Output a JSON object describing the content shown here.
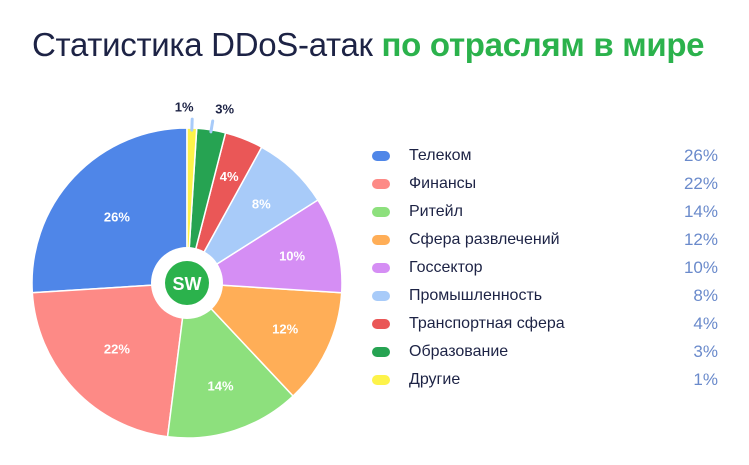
{
  "title": {
    "main": "Статистика DDoS-атак",
    "accent": "по отраслям в мире"
  },
  "logo": "SW",
  "colors": {
    "title_text": "#1d2345",
    "title_accent": "#2bb24c",
    "legend_value": "#6a8acb"
  },
  "chart_data": {
    "type": "pie",
    "unit": "%",
    "slices": [
      {
        "name": "Телеком",
        "value": 26,
        "label": "26%",
        "color": "#4f86e8"
      },
      {
        "name": "Финансы",
        "value": 22,
        "label": "22%",
        "color": "#fd8a86"
      },
      {
        "name": "Ритейл",
        "value": 14,
        "label": "14%",
        "color": "#8de07d"
      },
      {
        "name": "Сфера развлечений",
        "value": 12,
        "label": "12%",
        "color": "#ffae57"
      },
      {
        "name": "Госсектор",
        "value": 10,
        "label": "10%",
        "color": "#d58ef4"
      },
      {
        "name": "Промышленность",
        "value": 8,
        "label": "8%",
        "color": "#a8cbf9"
      },
      {
        "name": "Транспортная сфера",
        "value": 4,
        "label": "4%",
        "color": "#ea5757"
      },
      {
        "name": "Образование",
        "value": 3,
        "label": "3%",
        "color": "#26a352"
      },
      {
        "name": "Другие",
        "value": 1,
        "label": "1%",
        "color": "#fdf34a"
      }
    ],
    "legend_position": "right"
  }
}
